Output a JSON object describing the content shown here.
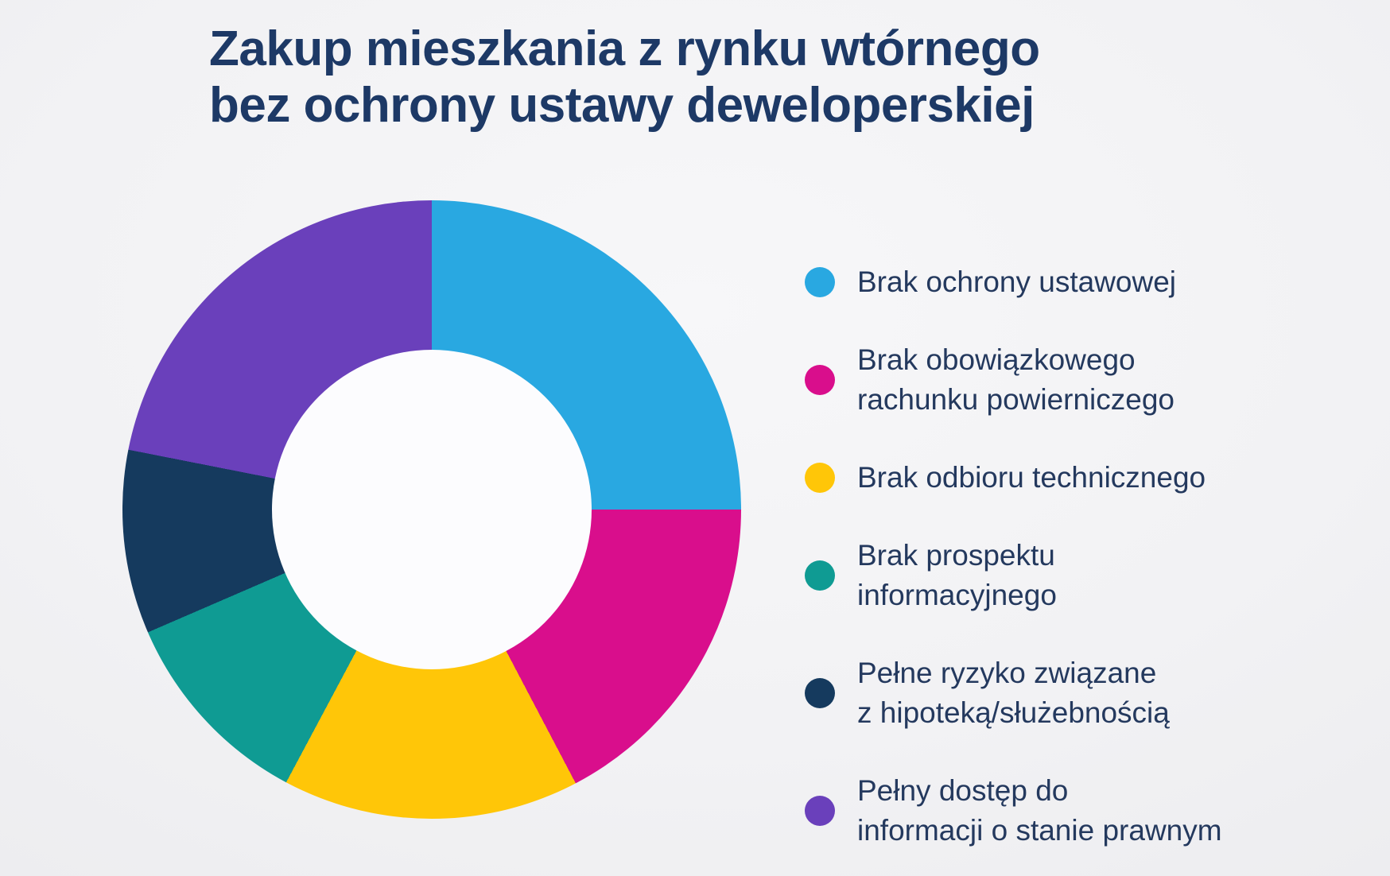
{
  "title": {
    "line1": "Zakup mieszkania z rynku wtórnego",
    "line2": "bez ochrony ustawy deweloperskiej"
  },
  "colors": {
    "background": "#F2F2F4",
    "title_text": "#1D3966",
    "legend_text": "#24395E",
    "donut_hole": "#FCFCFE"
  },
  "chart_data": {
    "type": "pie",
    "subtype": "donut",
    "title": "Zakup mieszkania z rynku wtórnego bez ochrony ustawy deweloperskiej",
    "start_angle_deg": 0,
    "direction": "clockwise",
    "labels_shown_on_chart": false,
    "values_unit": "percent (estimated from arc angles, no numeric labels printed)",
    "legend_position": "right",
    "inner_radius_ratio": 0.515,
    "categories": [
      "Brak ochrony ustawowej",
      "Brak obowiązkowego rachunku powierniczego",
      "Brak odbioru technicznego",
      "Brak prospektu informacyjnego",
      "Pełne ryzyko związane z hipoteką/służebnością",
      "Pełny dostęp do informacji o stanie prawnym"
    ],
    "values": [
      25.0,
      17.3,
      15.5,
      10.7,
      9.6,
      21.9
    ],
    "colors": [
      "#29A8E1",
      "#D90E8C",
      "#FFC608",
      "#0F9B93",
      "#153A5E",
      "#6A40BB"
    ]
  },
  "legend": {
    "items": [
      {
        "lines": [
          "Brak ochrony ustawowej"
        ]
      },
      {
        "lines": [
          "Brak obowiązkowego",
          "rachunku powierniczego"
        ]
      },
      {
        "lines": [
          "Brak odbioru technicznego"
        ]
      },
      {
        "lines": [
          "Brak prospektu",
          "informacyjnego"
        ]
      },
      {
        "lines": [
          "Pełne ryzyko związane",
          "z hipoteką/służebnością"
        ]
      },
      {
        "lines": [
          "Pełny dostęp do",
          "informacji o stanie prawnym"
        ]
      }
    ]
  }
}
